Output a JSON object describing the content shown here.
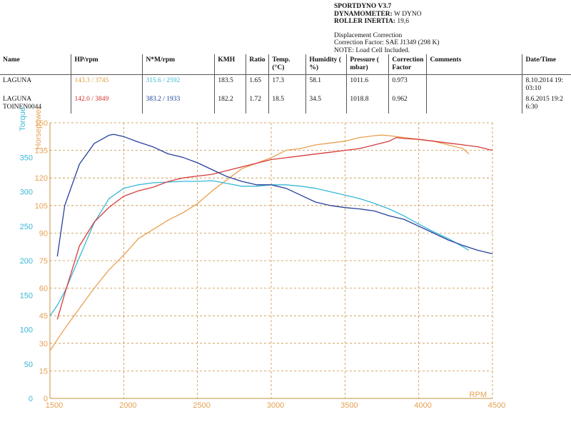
{
  "header": {
    "software": "SPORTDYNO V3.7",
    "dyno_label": "DYNAMOMETER:",
    "dyno_value": "W DYNO",
    "inertia_label": "ROLLER INERTIA:",
    "inertia_value": "19,6",
    "corr1": "Displacement Correction",
    "corr2": "Correction Factor: SAE J1349 (298 K)",
    "corr3": "NOTE: Load Cell Included."
  },
  "table": {
    "headers": [
      "Name",
      "HP/rpm",
      "N*M/rpm",
      "KMH",
      "Ratio",
      "Temp. (°C)",
      "Humidity ( %)",
      "Pressure ( mbar)",
      "Correction Factor",
      "Comments",
      "Date/Time"
    ],
    "rows": [
      {
        "name": "LAGUNA",
        "hp": "143.3 / 3745",
        "nm": "315.6 / 2592",
        "kmh": "183.5",
        "ratio": "1.65",
        "temp": "17.3",
        "hum": "58.1",
        "press": "1011.6",
        "cf": "0.973",
        "comments": "",
        "date": "8.10.2014 19:",
        "time": "03:10"
      },
      {
        "name": "LAGUNA TOINEN0044",
        "hp": "142.0 / 3849",
        "nm": "383.2 / 1933",
        "kmh": "182.2",
        "ratio": "1.72",
        "temp": "18.5",
        "hum": "34.5",
        "press": "1018.8",
        "cf": "0.962",
        "comments": "",
        "date": "8.6.2015 19:2",
        "time": "6:30"
      }
    ]
  },
  "chart_data": {
    "type": "line",
    "xlabel": "RPM",
    "ylabel_left": "Torque",
    "ylabel_right": "Horsepower",
    "xlim": [
      1500,
      4500
    ],
    "torque_lim": [
      0,
      400
    ],
    "hp_lim": [
      0,
      150
    ],
    "x_ticks": [
      1500,
      2000,
      2500,
      3000,
      3500,
      4000,
      4500
    ],
    "torque_ticks": [
      0,
      50,
      100,
      150,
      200,
      250,
      300,
      350
    ],
    "hp_ticks": [
      0,
      15,
      30,
      45,
      60,
      75,
      90,
      105,
      120,
      135,
      150
    ],
    "grid": true,
    "colors": {
      "hp1": "#e8a050",
      "torque1": "#38b8d8",
      "hp2": "#d63a3a",
      "torque2": "#25409a",
      "grid": "#c89040",
      "axis_left": "#38b8d8",
      "axis_right": "#e8a050"
    },
    "series": [
      {
        "name": "LAGUNA",
        "quantity": "hp",
        "color": "#e8a050",
        "points": [
          [
            1500,
            26
          ],
          [
            1550,
            32
          ],
          [
            1600,
            38
          ],
          [
            1700,
            49
          ],
          [
            1800,
            60
          ],
          [
            1900,
            70
          ],
          [
            2000,
            78
          ],
          [
            2100,
            87
          ],
          [
            2200,
            92
          ],
          [
            2300,
            97
          ],
          [
            2400,
            101
          ],
          [
            2500,
            106
          ],
          [
            2600,
            113
          ],
          [
            2700,
            119
          ],
          [
            2800,
            125
          ],
          [
            2900,
            128
          ],
          [
            3000,
            131
          ],
          [
            3100,
            135
          ],
          [
            3200,
            136
          ],
          [
            3300,
            138
          ],
          [
            3400,
            139
          ],
          [
            3500,
            140
          ],
          [
            3600,
            142
          ],
          [
            3700,
            143
          ],
          [
            3745,
            143.3
          ],
          [
            3800,
            143
          ],
          [
            3900,
            142
          ],
          [
            4000,
            141
          ],
          [
            4100,
            140
          ],
          [
            4200,
            138
          ],
          [
            4300,
            136
          ],
          [
            4340,
            133
          ]
        ]
      },
      {
        "name": "LAGUNA",
        "quantity": "torque",
        "color": "#38b8d8",
        "points": [
          [
            1500,
            120
          ],
          [
            1550,
            135
          ],
          [
            1600,
            155
          ],
          [
            1700,
            205
          ],
          [
            1800,
            255
          ],
          [
            1900,
            290
          ],
          [
            2000,
            305
          ],
          [
            2100,
            310
          ],
          [
            2200,
            313
          ],
          [
            2300,
            314
          ],
          [
            2400,
            315
          ],
          [
            2500,
            315
          ],
          [
            2600,
            316
          ],
          [
            2700,
            312
          ],
          [
            2800,
            308
          ],
          [
            2900,
            308
          ],
          [
            3000,
            310
          ],
          [
            3100,
            310
          ],
          [
            3200,
            308
          ],
          [
            3300,
            305
          ],
          [
            3400,
            300
          ],
          [
            3500,
            295
          ],
          [
            3600,
            290
          ],
          [
            3700,
            283
          ],
          [
            3800,
            275
          ],
          [
            3900,
            265
          ],
          [
            4000,
            253
          ],
          [
            4100,
            242
          ],
          [
            4200,
            232
          ],
          [
            4300,
            220
          ],
          [
            4340,
            215
          ]
        ]
      },
      {
        "name": "LAGUNA TOINEN0044",
        "quantity": "hp",
        "color": "#d63a3a",
        "points": [
          [
            1550,
            43
          ],
          [
            1600,
            57
          ],
          [
            1700,
            83
          ],
          [
            1800,
            96
          ],
          [
            1900,
            104
          ],
          [
            2000,
            110
          ],
          [
            2100,
            113
          ],
          [
            2200,
            115
          ],
          [
            2300,
            118
          ],
          [
            2400,
            120
          ],
          [
            2500,
            121
          ],
          [
            2600,
            122
          ],
          [
            2700,
            124
          ],
          [
            2800,
            126
          ],
          [
            2900,
            128
          ],
          [
            3000,
            130
          ],
          [
            3100,
            131
          ],
          [
            3200,
            132
          ],
          [
            3300,
            133
          ],
          [
            3400,
            134
          ],
          [
            3500,
            135
          ],
          [
            3600,
            136
          ],
          [
            3700,
            138
          ],
          [
            3800,
            140
          ],
          [
            3849,
            142
          ],
          [
            3900,
            141.5
          ],
          [
            4000,
            141
          ],
          [
            4100,
            140
          ],
          [
            4200,
            139
          ],
          [
            4300,
            138
          ],
          [
            4400,
            137
          ],
          [
            4500,
            135
          ]
        ]
      },
      {
        "name": "LAGUNA TOINEN0044",
        "quantity": "torque",
        "color": "#25409a",
        "points": [
          [
            1550,
            206
          ],
          [
            1600,
            280
          ],
          [
            1700,
            340
          ],
          [
            1800,
            370
          ],
          [
            1900,
            382
          ],
          [
            1933,
            383.2
          ],
          [
            2000,
            380
          ],
          [
            2100,
            372
          ],
          [
            2200,
            365
          ],
          [
            2300,
            355
          ],
          [
            2400,
            350
          ],
          [
            2500,
            342
          ],
          [
            2600,
            332
          ],
          [
            2700,
            322
          ],
          [
            2800,
            315
          ],
          [
            2900,
            310
          ],
          [
            3000,
            310
          ],
          [
            3100,
            305
          ],
          [
            3200,
            295
          ],
          [
            3300,
            285
          ],
          [
            3400,
            280
          ],
          [
            3500,
            277
          ],
          [
            3600,
            275
          ],
          [
            3700,
            272
          ],
          [
            3800,
            265
          ],
          [
            3900,
            260
          ],
          [
            4000,
            250
          ],
          [
            4100,
            240
          ],
          [
            4200,
            230
          ],
          [
            4300,
            222
          ],
          [
            4400,
            215
          ],
          [
            4500,
            210
          ]
        ]
      }
    ]
  }
}
